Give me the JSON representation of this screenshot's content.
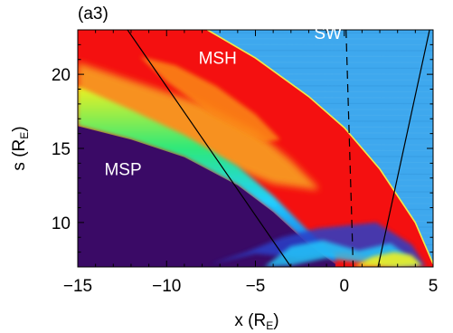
{
  "chart_data": {
    "type": "heatmap",
    "panel_label": "(a3)",
    "xlabel": "x (R",
    "xlabel_sub": "E",
    "xlabel_close": ")",
    "ylabel": "s (R",
    "ylabel_sub": "E",
    "ylabel_close": ")",
    "xlim": [
      -15,
      5
    ],
    "ylim": [
      7,
      23
    ],
    "x_ticks": [
      -15,
      -10,
      -5,
      0,
      5
    ],
    "x_tick_labels": [
      "−15",
      "−10",
      "−5",
      "0",
      "5"
    ],
    "y_ticks": [
      10,
      15,
      20
    ],
    "y_tick_labels": [
      "10",
      "15",
      "20"
    ],
    "regions": [
      {
        "label": "MSH",
        "x": -8.2,
        "y": 20.7
      },
      {
        "label": "SW",
        "x": -1.7,
        "y": 22.4
      },
      {
        "label": "MSP",
        "x": -13.5,
        "y": 13.2
      }
    ],
    "colors": {
      "magnetosphere": "#3a0a66",
      "magnetosheath": "#f41010",
      "solar_wind": "#3ea8ee",
      "orange": "#f8a020",
      "yellow": "#f0f020",
      "green": "#2ee87a",
      "cyan": "#20d0ff",
      "blue": "#1850e0"
    },
    "bow_shock": {
      "x": [
        -7.7,
        -5,
        -2,
        0,
        2,
        4,
        5
      ],
      "y": [
        23,
        21.1,
        18.5,
        16.4,
        13.6,
        10.0,
        7.2
      ]
    },
    "magnetopause": {
      "x": [
        -15,
        -12,
        -9,
        -6,
        -4,
        -2,
        -0.5
      ],
      "y": [
        16.5,
        15.6,
        14.4,
        12.5,
        10.7,
        8.5,
        7.2
      ]
    },
    "lines": [
      {
        "style": "solid",
        "x": [
          -12.2,
          -3.0
        ],
        "y": [
          23,
          7
        ]
      },
      {
        "style": "solid",
        "x": [
          1.9,
          4.8
        ],
        "y": [
          7,
          23
        ]
      },
      {
        "style": "dashed",
        "x": [
          0.1,
          0.5
        ],
        "y": [
          23,
          7
        ]
      }
    ]
  }
}
